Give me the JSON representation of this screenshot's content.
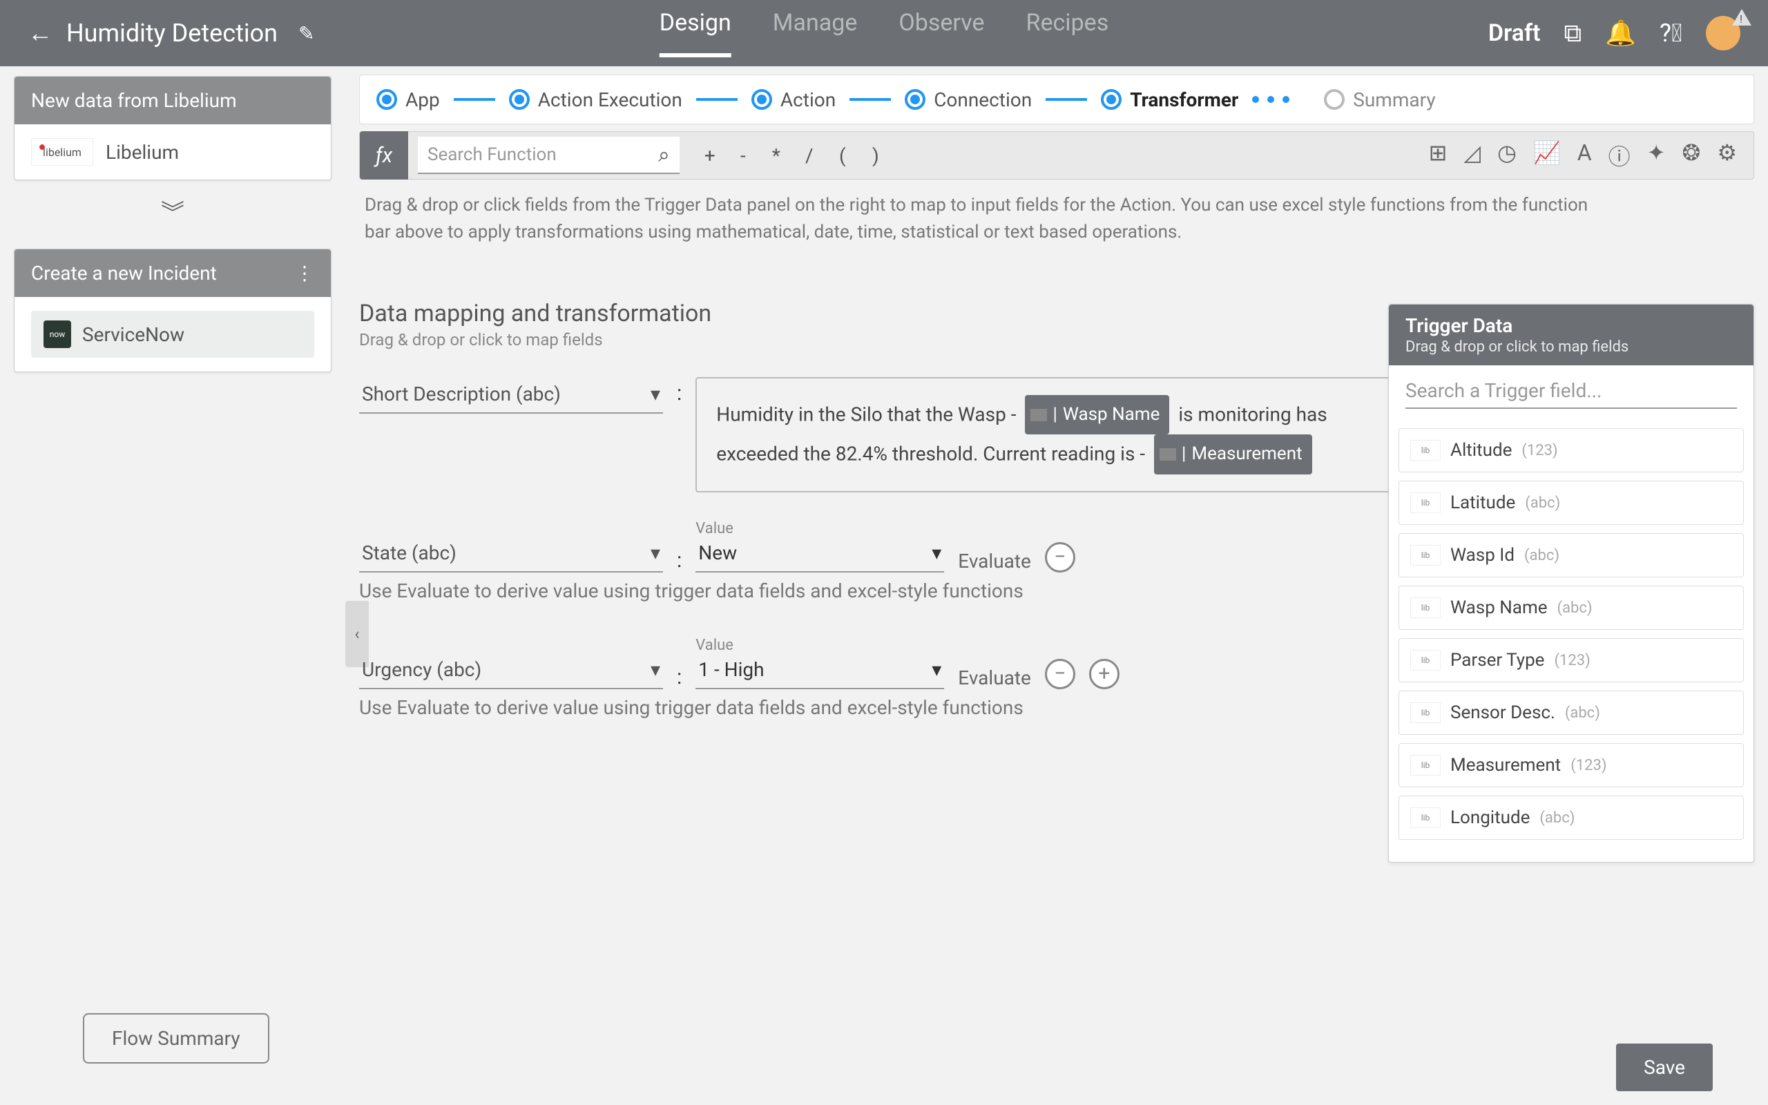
{
  "header": {
    "title": "Humidity Detection",
    "tabs": {
      "design": "Design",
      "manage": "Manage",
      "observe": "Observe",
      "recipes": "Recipes"
    },
    "status": "Draft"
  },
  "steps": {
    "app": "App",
    "action_execution": "Action Execution",
    "action": "Action",
    "connection": "Connection",
    "transformer": "Transformer",
    "summary": "Summary"
  },
  "sidebar": {
    "trigger_card_title": "New data from Libelium",
    "trigger_provider": "Libelium",
    "action_card_title": "Create a new Incident",
    "action_provider": "ServiceNow",
    "flow_summary_btn": "Flow Summary"
  },
  "function_bar": {
    "search_placeholder": "Search Function",
    "ops": {
      "plus": "+",
      "minus": "-",
      "mult": "*",
      "div": "/",
      "lp": "(",
      "rp": ")"
    }
  },
  "hint": "Drag & drop or click fields from the Trigger Data panel on the right to map to input fields for the Action. You can use excel style functions from the function bar above to apply transformations using mathematical, date, time, statistical or text based operations.",
  "mapping": {
    "title": "Data mapping and transformation",
    "subtitle": "Drag & drop or click to map fields",
    "fields": {
      "short_desc": {
        "label": "Short Description (abc)",
        "text_a": "Humidity in the Silo that the Wasp - ",
        "chip1": "Wasp Name",
        "text_b": " is monitoring has exceeded the 82.4% threshold. Current reading is - ",
        "chip2": "Measurement"
      },
      "state": {
        "label": "State (abc)",
        "value_label": "Value",
        "value": "New",
        "evaluate": "Evaluate"
      },
      "urgency": {
        "label": "Urgency (abc)",
        "value_label": "Value",
        "value": "1 - High",
        "evaluate": "Evaluate"
      },
      "eval_hint": "Use Evaluate to derive value using trigger data fields and excel-style functions"
    }
  },
  "trigger_panel": {
    "title": "Trigger Data",
    "subtitle": "Drag & drop or click to map fields",
    "search_placeholder": "Search a Trigger field...",
    "items": [
      {
        "name": "Altitude",
        "type": "(123)"
      },
      {
        "name": "Latitude",
        "type": "(abc)"
      },
      {
        "name": "Wasp Id",
        "type": "(abc)"
      },
      {
        "name": "Wasp Name",
        "type": "(abc)"
      },
      {
        "name": "Parser Type",
        "type": "(123)"
      },
      {
        "name": "Sensor Desc.",
        "type": "(abc)"
      },
      {
        "name": "Measurement",
        "type": "(123)"
      },
      {
        "name": "Longitude",
        "type": "(abc)"
      }
    ]
  },
  "save_btn": "Save"
}
